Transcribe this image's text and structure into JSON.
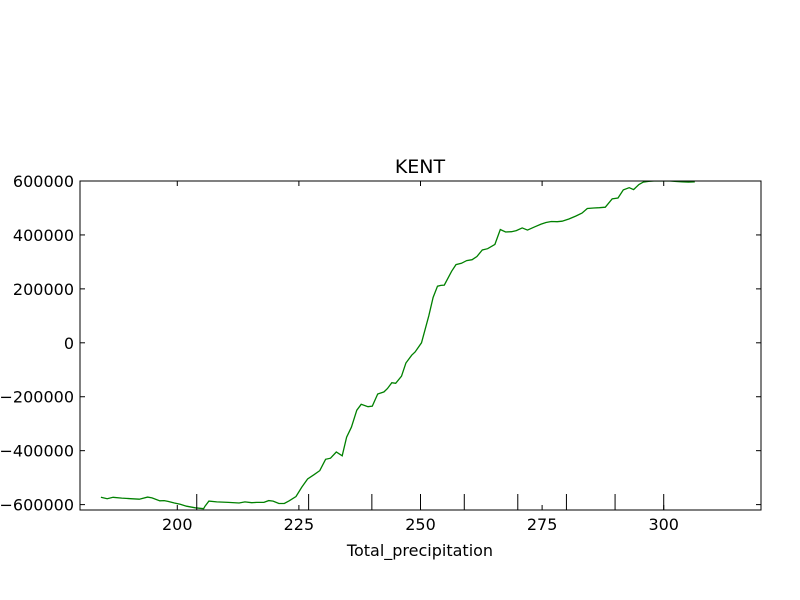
{
  "chart_data": {
    "type": "line",
    "title": "KENT",
    "xlabel": "Total_precipitation",
    "ylabel": "",
    "xlim": [
      180,
      320
    ],
    "ylim": [
      -620000,
      600000
    ],
    "x_ticks": [
      200,
      225,
      250,
      275,
      300
    ],
    "y_ticks": [
      600000,
      400000,
      200000,
      0,
      -200000,
      -400000,
      -600000
    ],
    "x_tick_labels": [
      "200",
      "225",
      "250",
      "275",
      "300"
    ],
    "y_tick_labels": [
      "600000",
      "400000",
      "200000",
      "0",
      "−200000",
      "−400000",
      "−600000"
    ],
    "rug_x": [
      204,
      227,
      240,
      250,
      259,
      270,
      280,
      290,
      300
    ],
    "grid": false,
    "series": [
      {
        "color": "#008000",
        "x": [
          184.3,
          185.6,
          186.8,
          188.6,
          190.4,
          192.2,
          193.9,
          194.8,
          196.4,
          197.3,
          198.1,
          199.4,
          200.6,
          201.9,
          203.7,
          205.4,
          205.7,
          206.5,
          208.1,
          210.5,
          212.7,
          213.9,
          215.3,
          216.3,
          217.8,
          218.8,
          219.7,
          220.9,
          222.0,
          223.0,
          224.4,
          225.6,
          226.8,
          228.1,
          229.3,
          230.5,
          231.5,
          232.7,
          233.9,
          234.8,
          235.8,
          236.9,
          237.8,
          239.2,
          240.1,
          241.2,
          242.5,
          243.2,
          244.1,
          244.9,
          246.1,
          247.0,
          248.2,
          248.9,
          250.2,
          251.1,
          251.7,
          252.6,
          253.5,
          254.2,
          254.9,
          256.4,
          257.3,
          258.4,
          259.5,
          260.6,
          261.6,
          262.7,
          263.8,
          265.3,
          266.4,
          267.5,
          268.7,
          269.7,
          270.9,
          272.0,
          273.5,
          274.8,
          275.8,
          276.9,
          278.1,
          279.1,
          280.5,
          281.9,
          283.2,
          284.3,
          285.6,
          286.8,
          288.0,
          289.4,
          290.6,
          291.7,
          292.9,
          293.8,
          294.9,
          295.8,
          296.9,
          298.0,
          299.0,
          300.2,
          301.3,
          302.6,
          303.8,
          305.1,
          306.4
        ],
        "y": [
          -573000,
          -578000,
          -573000,
          -576000,
          -578000,
          -580000,
          -572000,
          -575000,
          -586000,
          -585000,
          -588000,
          -594000,
          -599000,
          -606000,
          -612000,
          -615000,
          -606000,
          -587000,
          -590000,
          -592000,
          -594000,
          -590000,
          -593000,
          -592000,
          -592000,
          -585000,
          -587000,
          -596000,
          -596000,
          -586000,
          -570000,
          -535000,
          -505000,
          -489000,
          -474000,
          -432000,
          -428000,
          -405000,
          -419000,
          -350000,
          -313000,
          -250000,
          -228000,
          -237000,
          -235000,
          -190000,
          -182000,
          -170000,
          -148000,
          -150000,
          -124000,
          -75000,
          -46000,
          -34000,
          0,
          60000,
          100000,
          168000,
          210000,
          213000,
          214000,
          265000,
          290000,
          295000,
          305000,
          308000,
          320000,
          344000,
          349000,
          365000,
          420000,
          411000,
          412000,
          416000,
          426000,
          418000,
          430000,
          440000,
          446000,
          450000,
          449000,
          451000,
          459000,
          470000,
          481000,
          498000,
          500000,
          501000,
          503000,
          534000,
          537000,
          567000,
          575000,
          568000,
          587000,
          596000,
          599000,
          600000,
          600000,
          600000,
          600000,
          598000,
          597000,
          596000,
          597000
        ]
      }
    ]
  }
}
